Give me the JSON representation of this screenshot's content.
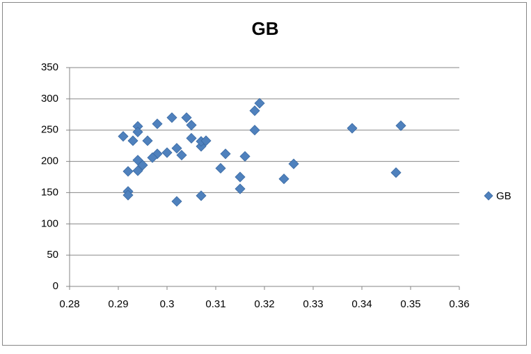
{
  "chart_data": {
    "type": "scatter",
    "title": "GB",
    "series": [
      {
        "name": "GB",
        "color": "#4f81bd",
        "x": [
          0.291,
          0.293,
          0.294,
          0.294,
          0.296,
          0.298,
          0.301,
          0.304,
          0.305,
          0.305,
          0.307,
          0.307,
          0.308,
          0.302,
          0.303,
          0.3,
          0.298,
          0.297,
          0.294,
          0.295,
          0.294,
          0.292,
          0.292,
          0.292,
          0.302,
          0.307,
          0.311,
          0.312,
          0.315,
          0.315,
          0.316,
          0.318,
          0.318,
          0.319,
          0.324,
          0.326,
          0.338,
          0.347,
          0.348
        ],
        "values": [
          240,
          233,
          256,
          247,
          233,
          260,
          270,
          270,
          258,
          237,
          224,
          232,
          233,
          221,
          210,
          214,
          212,
          206,
          202,
          194,
          185,
          184,
          152,
          146,
          136,
          145,
          189,
          212,
          175,
          156,
          208,
          250,
          281,
          293,
          172,
          196,
          253,
          182,
          257
        ]
      }
    ],
    "xlim": [
      0.28,
      0.36
    ],
    "xticks": [
      0.28,
      0.29,
      0.3,
      0.31,
      0.32,
      0.33,
      0.34,
      0.35,
      0.36
    ],
    "ylim": [
      0,
      350
    ],
    "yticks": [
      0,
      50,
      100,
      150,
      200,
      250,
      300,
      350
    ],
    "grid": true,
    "legend": "right"
  }
}
